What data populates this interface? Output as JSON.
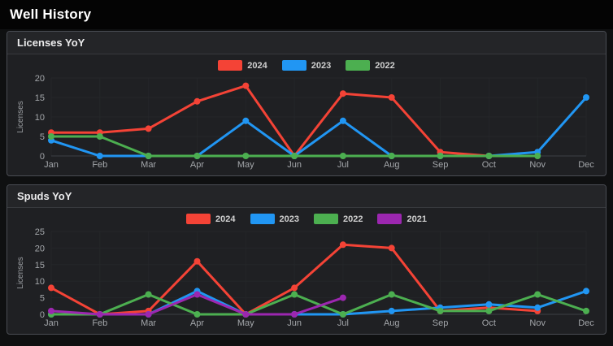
{
  "page": {
    "title": "Well History"
  },
  "panels": [
    {
      "title": "Licenses YoY"
    },
    {
      "title": "Spuds YoY"
    }
  ],
  "theme": {
    "series_colors": {
      "2024": "#f44336",
      "2023": "#2196f3",
      "2022": "#4caf50",
      "2021": "#9c27b0"
    }
  },
  "chart_data": [
    {
      "type": "line",
      "title": "Licenses YoY",
      "xlabel": "",
      "ylabel": "Licenses",
      "categories": [
        "Jan",
        "Feb",
        "Mar",
        "Apr",
        "May",
        "Jun",
        "Jul",
        "Aug",
        "Sep",
        "Oct",
        "Nov",
        "Dec"
      ],
      "ylim": [
        0,
        20
      ],
      "yticks": [
        0,
        5,
        10,
        15,
        20
      ],
      "grid": true,
      "legend_position": "top",
      "series": [
        {
          "name": "2024",
          "color": "#f44336",
          "values": [
            6,
            6,
            7,
            14,
            18,
            0,
            16,
            15,
            1,
            0,
            null,
            null
          ]
        },
        {
          "name": "2023",
          "color": "#2196f3",
          "values": [
            4,
            0,
            0,
            0,
            9,
            0,
            9,
            0,
            0,
            0,
            1,
            15
          ]
        },
        {
          "name": "2022",
          "color": "#4caf50",
          "values": [
            5,
            5,
            0,
            0,
            0,
            0,
            0,
            0,
            0,
            0,
            0,
            null
          ]
        }
      ]
    },
    {
      "type": "line",
      "title": "Spuds YoY",
      "xlabel": "",
      "ylabel": "Licenses",
      "categories": [
        "Jan",
        "Feb",
        "Mar",
        "Apr",
        "May",
        "Jun",
        "Jul",
        "Aug",
        "Sep",
        "Oct",
        "Nov",
        "Dec"
      ],
      "ylim": [
        0,
        25
      ],
      "yticks": [
        0,
        5,
        10,
        15,
        20,
        25
      ],
      "grid": true,
      "legend_position": "top",
      "series": [
        {
          "name": "2024",
          "color": "#f44336",
          "values": [
            8,
            0,
            1,
            16,
            0,
            8,
            21,
            20,
            1,
            2,
            1,
            null
          ]
        },
        {
          "name": "2023",
          "color": "#2196f3",
          "values": [
            0,
            0,
            0,
            7,
            0,
            0,
            0,
            1,
            2,
            3,
            2,
            7
          ]
        },
        {
          "name": "2022",
          "color": "#4caf50",
          "values": [
            0,
            0,
            6,
            0,
            0,
            6,
            0,
            6,
            1,
            1,
            6,
            1
          ]
        },
        {
          "name": "2021",
          "color": "#9c27b0",
          "values": [
            1,
            0,
            0,
            6,
            0,
            0,
            5,
            null,
            null,
            null,
            null,
            null
          ]
        }
      ]
    }
  ]
}
